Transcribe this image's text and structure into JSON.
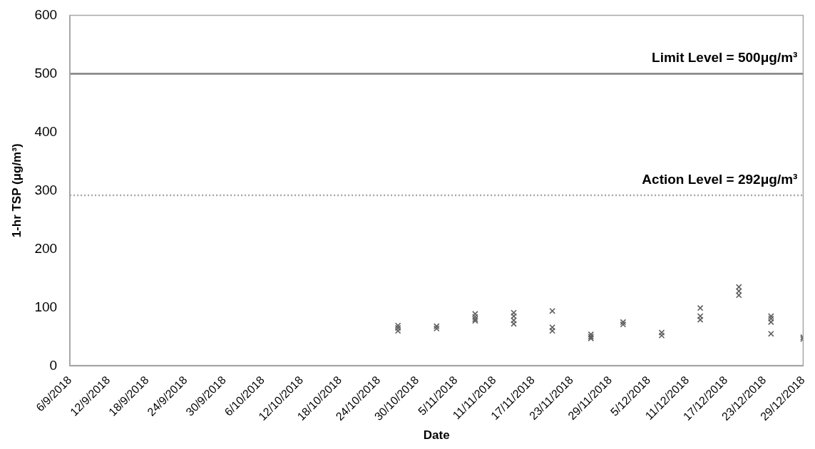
{
  "chart_data": {
    "type": "scatter",
    "xlabel": "Date",
    "ylabel": "1-hr TSP (μg/m³)",
    "series": [
      {
        "color": "#5f5f5f",
        "x": [
          "2018-10-27",
          "2018-10-27",
          "2018-10-27",
          "2018-11-02",
          "2018-11-02",
          "2018-11-08",
          "2018-11-08",
          "2018-11-08",
          "2018-11-08",
          "2018-11-14",
          "2018-11-14",
          "2018-11-14",
          "2018-11-14",
          "2018-11-20",
          "2018-11-20",
          "2018-11-20",
          "2018-11-26",
          "2018-11-26",
          "2018-11-26",
          "2018-12-01",
          "2018-12-01",
          "2018-12-07",
          "2018-12-07",
          "2018-12-13",
          "2018-12-13",
          "2018-12-13",
          "2018-12-19",
          "2018-12-19",
          "2018-12-19",
          "2018-12-24",
          "2018-12-24",
          "2018-12-24",
          "2018-12-24",
          "2018-12-29",
          "2018-12-29"
        ],
        "values": [
          69,
          65,
          60,
          68,
          64,
          89,
          84,
          80,
          77,
          91,
          85,
          78,
          72,
          94,
          66,
          60,
          54,
          50,
          47,
          75,
          71,
          57,
          52,
          99,
          85,
          79,
          135,
          128,
          121,
          85,
          81,
          75,
          55,
          49,
          46
        ]
      }
    ],
    "xlim": [
      "2018-09-06",
      "2018-12-29"
    ],
    "xticks": [
      {
        "value": "2018-09-06",
        "label": "6/9/2018"
      },
      {
        "value": "2018-09-12",
        "label": "12/9/2018"
      },
      {
        "value": "2018-09-18",
        "label": "18/9/2018"
      },
      {
        "value": "2018-09-24",
        "label": "24/9/2018"
      },
      {
        "value": "2018-09-30",
        "label": "30/9/2018"
      },
      {
        "value": "2018-10-06",
        "label": "6/10/2018"
      },
      {
        "value": "2018-10-12",
        "label": "12/10/2018"
      },
      {
        "value": "2018-10-18",
        "label": "18/10/2018"
      },
      {
        "value": "2018-10-24",
        "label": "24/10/2018"
      },
      {
        "value": "2018-10-30",
        "label": "30/10/2018"
      },
      {
        "value": "2018-11-05",
        "label": "5/11/2018"
      },
      {
        "value": "2018-11-11",
        "label": "11/11/2018"
      },
      {
        "value": "2018-11-17",
        "label": "17/11/2018"
      },
      {
        "value": "2018-11-23",
        "label": "23/11/2018"
      },
      {
        "value": "2018-11-29",
        "label": "29/11/2018"
      },
      {
        "value": "2018-12-05",
        "label": "5/12/2018"
      },
      {
        "value": "2018-12-11",
        "label": "11/12/2018"
      },
      {
        "value": "2018-12-17",
        "label": "17/12/2018"
      },
      {
        "value": "2018-12-23",
        "label": "23/12/2018"
      },
      {
        "value": "2018-12-29",
        "label": "29/12/2018"
      }
    ],
    "ylim": [
      0,
      600
    ],
    "yticks": [
      0,
      100,
      200,
      300,
      400,
      500,
      600
    ],
    "grid": false,
    "legend": false,
    "marker": "cross",
    "ref_lines": [
      {
        "axis": "y",
        "value": 500,
        "label": "Limit Level = 500μg/m³",
        "color": "#7f7f7f",
        "line_style": "solid"
      },
      {
        "axis": "y",
        "value": 292,
        "label": "Action Level = 292μg/m³",
        "color": "#a6a6a6",
        "line_style": "dotted"
      }
    ]
  }
}
